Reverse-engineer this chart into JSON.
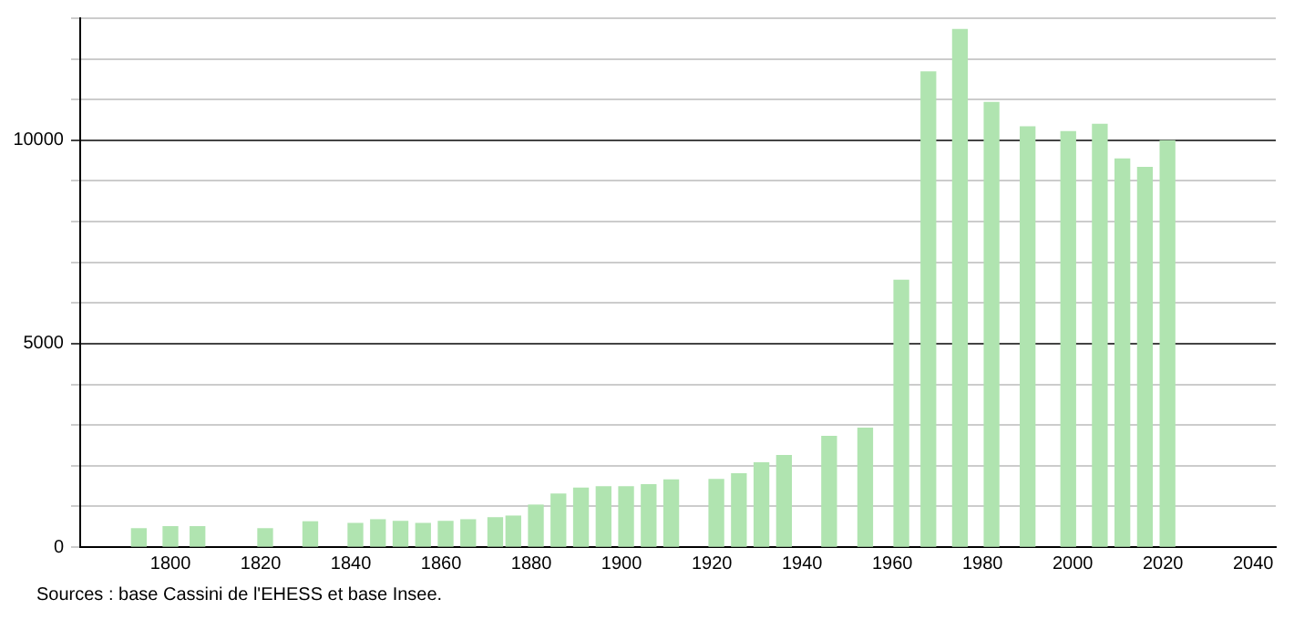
{
  "chart_data": {
    "type": "bar",
    "x": [
      1793,
      1800,
      1806,
      1821,
      1831,
      1841,
      1846,
      1851,
      1856,
      1861,
      1866,
      1872,
      1876,
      1881,
      1886,
      1891,
      1896,
      1901,
      1906,
      1911,
      1921,
      1926,
      1931,
      1936,
      1946,
      1954,
      1962,
      1968,
      1975,
      1982,
      1990,
      1999,
      2006,
      2011,
      2016,
      2021
    ],
    "values": [
      450,
      500,
      500,
      450,
      620,
      580,
      670,
      630,
      580,
      630,
      670,
      720,
      760,
      1030,
      1300,
      1450,
      1480,
      1480,
      1530,
      1650,
      1660,
      1800,
      2070,
      2250,
      2720,
      2920,
      6560,
      11680,
      12720,
      10930,
      10330,
      10210,
      10390,
      9540,
      9330,
      9990
    ],
    "color": "#b0e4b0",
    "xlim": [
      1780,
      2045
    ],
    "xticks": [
      1800,
      1820,
      1840,
      1860,
      1880,
      1900,
      1920,
      1940,
      1960,
      1980,
      2000,
      2020,
      2040
    ],
    "ylim": [
      0,
      13000
    ],
    "yticks": [
      0,
      {
        "value": 1000,
        "label": null
      },
      {
        "value": 2000,
        "label": null
      },
      {
        "value": 3000,
        "label": null
      },
      {
        "value": 4000,
        "label": null
      },
      5000,
      {
        "value": 6000,
        "label": null
      },
      {
        "value": 7000,
        "label": null
      },
      {
        "value": 8000,
        "label": null
      },
      {
        "value": 9000,
        "label": null
      },
      10000,
      {
        "value": 11000,
        "label": null
      },
      {
        "value": 12000,
        "label": null
      },
      {
        "value": 13000,
        "label": null
      }
    ],
    "grid": "y",
    "annotations": [
      "Sources : base Cassini de l'EHESS et base Insee."
    ]
  }
}
